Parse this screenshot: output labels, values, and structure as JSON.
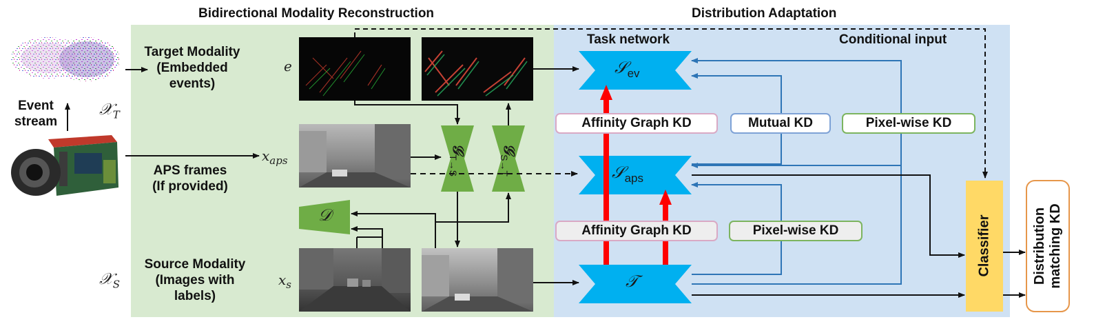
{
  "headings": {
    "reconstruction": "Bidirectional Modality Reconstruction",
    "adaptation": "Distribution Adaptation",
    "task_network": "Task network",
    "conditional_input": "Conditional input"
  },
  "left": {
    "event_stream": "Event\nstream",
    "target_modality": "Target Modality\n(Embedded\nevents)",
    "aps_frames": "APS frames\n(If provided)",
    "source_modality": "Source Modality\n(Images with\nlabels)"
  },
  "symbols": {
    "x_T_base": "𝒳",
    "x_T_sub": "T",
    "x_S_base": "𝒳",
    "x_S_sub": "S",
    "e": "e",
    "x_aps_base": "x",
    "x_aps_sub": "aps",
    "x_s_base": "x",
    "x_s_sub": "s"
  },
  "generators": {
    "g1_base": "𝒢",
    "g1_sub": "T→S",
    "g2_base": "𝒢",
    "g2_sub": "S→T",
    "discriminator": "𝒟"
  },
  "networks": {
    "s_ev_base": "𝒮",
    "s_ev_sub": "ev",
    "s_aps_base": "𝒮",
    "s_aps_sub": "aps",
    "teacher": "𝒯"
  },
  "kd_boxes": {
    "affinity_top": "Affinity Graph KD",
    "mutual": "Mutual KD",
    "pixel_top": "Pixel-wise KD",
    "affinity_bottom": "Affinity Graph KD",
    "pixel_bottom": "Pixel-wise KD"
  },
  "right": {
    "classifier": "Classifier",
    "distribution": "Distribution\nmatching KD"
  },
  "colors": {
    "recon_bg": "#d8ead0",
    "adapt_bg": "#cfe1f3",
    "generator": "#6fad46",
    "network": "#00b0f0",
    "kd_arrow": "#ff0000",
    "classifier": "#ffd966",
    "line_blue": "#2e75b6",
    "dist_border": "#e6964a"
  }
}
